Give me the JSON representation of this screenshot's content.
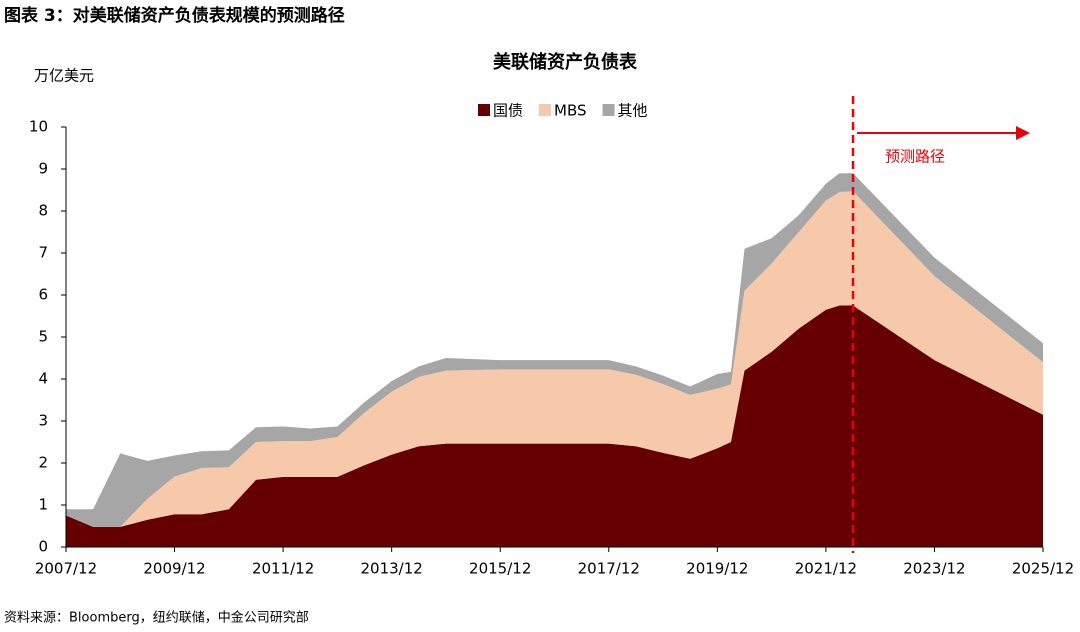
{
  "header": "图表 3：对美联储资产负债表规模的预测路径",
  "source": "资料来源：Bloomberg，纽约联储，中金公司研究部",
  "chart_data": {
    "type": "stacked-area",
    "title": "美联储资产负债表",
    "y_label": "万亿美元",
    "x": [
      "2007/12",
      "2008/06",
      "2008/12",
      "2009/06",
      "2009/12",
      "2010/06",
      "2010/12",
      "2011/06",
      "2011/12",
      "2012/06",
      "2012/12",
      "2013/06",
      "2013/12",
      "2014/06",
      "2014/12",
      "2015/12",
      "2016/12",
      "2017/12",
      "2018/06",
      "2018/12",
      "2019/06",
      "2019/12",
      "2020/03",
      "2020/06",
      "2020/12",
      "2021/06",
      "2021/12",
      "2022/03",
      "2022/06",
      "2023/12",
      "2025/12"
    ],
    "series": [
      {
        "name": "国债",
        "color": "#660000",
        "values": [
          0.75,
          0.48,
          0.48,
          0.65,
          0.78,
          0.78,
          0.9,
          1.6,
          1.67,
          1.67,
          1.67,
          1.95,
          2.2,
          2.4,
          2.46,
          2.46,
          2.46,
          2.46,
          2.4,
          2.24,
          2.1,
          2.35,
          2.5,
          4.2,
          4.65,
          5.2,
          5.65,
          5.75,
          5.75,
          4.45,
          3.15
        ]
      },
      {
        "name": "MBS",
        "color": "#f6c9ab",
        "values": [
          0,
          0,
          0,
          0.5,
          0.9,
          1.1,
          1.0,
          0.9,
          0.85,
          0.85,
          0.95,
          1.25,
          1.5,
          1.65,
          1.74,
          1.77,
          1.77,
          1.77,
          1.7,
          1.64,
          1.52,
          1.42,
          1.37,
          1.9,
          2.1,
          2.3,
          2.6,
          2.7,
          2.72,
          2.0,
          1.25
        ]
      },
      {
        "name": "其他",
        "color": "#a6a6a6",
        "values": [
          0.15,
          0.42,
          1.75,
          0.9,
          0.5,
          0.4,
          0.4,
          0.35,
          0.35,
          0.3,
          0.25,
          0.25,
          0.25,
          0.25,
          0.3,
          0.22,
          0.22,
          0.22,
          0.2,
          0.2,
          0.2,
          0.35,
          0.3,
          1.0,
          0.6,
          0.4,
          0.4,
          0.45,
          0.43,
          0.44,
          0.45
        ]
      }
    ],
    "xlim": [
      "2007/12",
      "2025/12"
    ],
    "xticks": [
      "2007/12",
      "2009/12",
      "2011/12",
      "2013/12",
      "2015/12",
      "2017/12",
      "2019/12",
      "2021/12",
      "2023/12",
      "2025/12"
    ],
    "ylim": [
      0,
      10
    ],
    "yticks": [
      0,
      1,
      2,
      3,
      4,
      5,
      6,
      7,
      8,
      9,
      10
    ],
    "legend": "top",
    "projection": {
      "x": "2022/06",
      "label": "预测路径",
      "color": "#e8000b"
    }
  }
}
